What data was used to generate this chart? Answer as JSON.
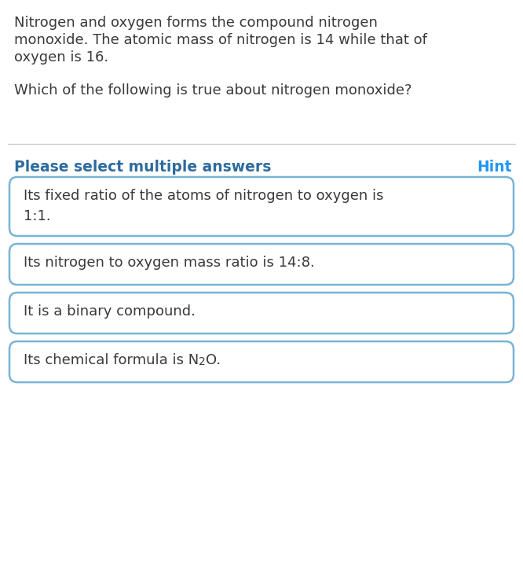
{
  "background_color": "#ffffff",
  "text_color_dark": "#2d6b9e",
  "text_color_body": "#3a3a3a",
  "hint_color": "#2196f3",
  "border_color": "#7ab3d4",
  "paragraph1_line1": "Nitrogen and oxygen forms the compound nitrogen",
  "paragraph1_line2": "monoxide. The atomic mass of nitrogen is 14 while that of",
  "paragraph1_line3": "oxygen is 16.",
  "paragraph2": "Which of the following is true about nitrogen monoxide?",
  "section_label": "Please select multiple answers",
  "hint_label": "Hint",
  "options": [
    "Its fixed ratio of the atoms of nitrogen to oxygen is\n1:1.",
    "Its nitrogen to oxygen mass ratio is 14:8.",
    "It is a binary compound.",
    "Its chemical formula is N₂O."
  ],
  "divider_color": "#cccccc",
  "body_fontsize": 13.0,
  "section_fontsize": 13.5,
  "option_fontsize": 13.0
}
